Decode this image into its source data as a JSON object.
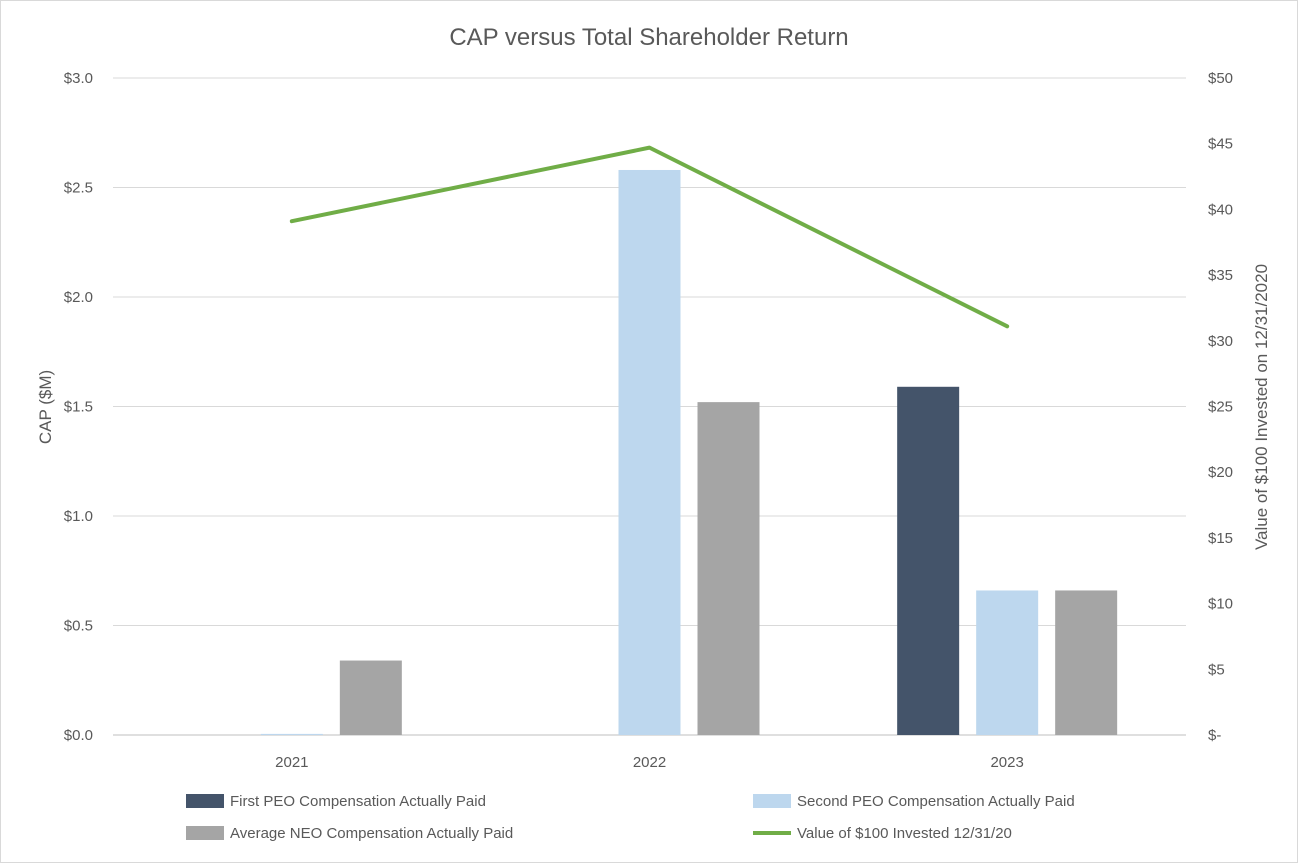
{
  "chart_data": {
    "type": "bar",
    "title": "CAP versus Total Shareholder Return",
    "categories": [
      "2021",
      "2022",
      "2023"
    ],
    "ylabel": "CAP ($M)",
    "ylabel_right": "Value of $100 Invested on 12/31/2020",
    "ylim": [
      0,
      3.0
    ],
    "ylim_right": [
      0,
      50
    ],
    "yticks": [
      {
        "value": 0,
        "label": "$0.0"
      },
      {
        "value": 0.5,
        "label": "$0.5"
      },
      {
        "value": 1.0,
        "label": "$1.0"
      },
      {
        "value": 1.5,
        "label": "$1.5"
      },
      {
        "value": 2.0,
        "label": "$2.0"
      },
      {
        "value": 2.5,
        "label": "$2.5"
      },
      {
        "value": 3.0,
        "label": "$3.0"
      }
    ],
    "yticks_right": [
      {
        "value": 0,
        "label": "$-"
      },
      {
        "value": 5,
        "label": "$5"
      },
      {
        "value": 10,
        "label": "$10"
      },
      {
        "value": 15,
        "label": "$15"
      },
      {
        "value": 20,
        "label": "$20"
      },
      {
        "value": 25,
        "label": "$25"
      },
      {
        "value": 30,
        "label": "$30"
      },
      {
        "value": 35,
        "label": "$35"
      },
      {
        "value": 40,
        "label": "$40"
      },
      {
        "value": 45,
        "label": "$45"
      },
      {
        "value": 50,
        "label": "$50"
      }
    ],
    "grid": true,
    "legend_position": "bottom",
    "series": [
      {
        "name": "First PEO Compensation Actually Paid",
        "kind": "bar",
        "axis": "left",
        "color": "#44546a",
        "values": [
          0,
          0,
          1.59
        ]
      },
      {
        "name": "Second PEO Compensation Actually Paid",
        "kind": "bar",
        "axis": "left",
        "color": "#bdd7ee",
        "values": [
          0.005,
          2.58,
          0.66
        ]
      },
      {
        "name": "Average NEO Compensation Actually Paid",
        "kind": "bar",
        "axis": "left",
        "color": "#a5a5a5",
        "values": [
          0.34,
          1.52,
          0.66
        ]
      },
      {
        "name": "Value of $100 Invested 12/31/20",
        "kind": "line",
        "axis": "right",
        "color": "#70ad47",
        "values": [
          39.1,
          44.7,
          31.1
        ]
      }
    ]
  }
}
